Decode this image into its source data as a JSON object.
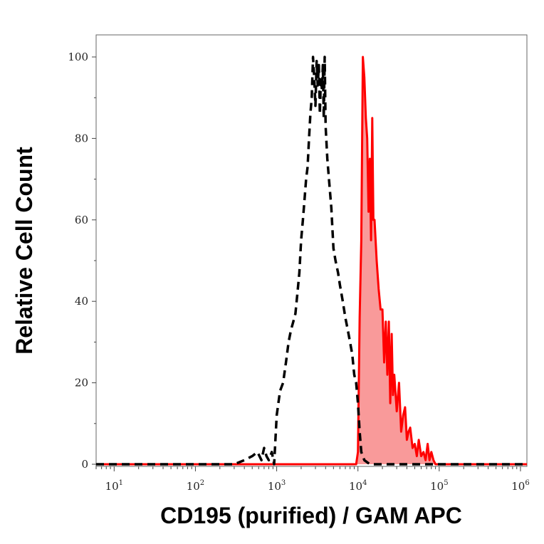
{
  "chart_data": {
    "type": "area",
    "xlabel": "CD195 (purified) / GAM APC",
    "ylabel": "Relative Cell Count",
    "x_scale": "log",
    "xlim": [
      6,
      1200000
    ],
    "ylim": [
      0,
      100
    ],
    "y_ticks": [
      "0",
      "20",
      "40",
      "60",
      "80",
      "100"
    ],
    "x_ticks": [
      {
        "value": 10,
        "base": "10",
        "exp": "1"
      },
      {
        "value": 100,
        "base": "10",
        "exp": "2"
      },
      {
        "value": 1000,
        "base": "10",
        "exp": "3"
      },
      {
        "value": 10000,
        "base": "10",
        "exp": "4"
      },
      {
        "value": 100000,
        "base": "10",
        "exp": "5"
      },
      {
        "value": 1000000,
        "base": "10",
        "exp": "6"
      }
    ],
    "grid": false,
    "colors": {
      "stained_line": "#ff0000",
      "stained_fill": "#f99a9a",
      "control_line": "#000000",
      "axis": "#333333"
    },
    "series": [
      {
        "style": "dashed-black",
        "x": [
          6,
          300,
          400,
          500,
          580,
          650,
          700,
          750,
          800,
          870,
          930,
          1000,
          1100,
          1200,
          1300,
          1400,
          1500,
          1600,
          1700,
          1800,
          1900,
          2000,
          2100,
          2200,
          2300,
          2400,
          2500,
          2600,
          2700,
          2800,
          2900,
          3000,
          3100,
          3200,
          3300,
          3400,
          3500,
          3600,
          3700,
          3800,
          3900,
          4000,
          4200,
          4400,
          4700,
          5000,
          5300,
          5700,
          6000,
          6500,
          7000,
          7500,
          8000,
          8500,
          9000,
          9500,
          10000,
          10500,
          11000,
          12000,
          14000,
          1200000
        ],
        "y": [
          0,
          0,
          1,
          2,
          3,
          1,
          4,
          2,
          1,
          3,
          0,
          12,
          18,
          20,
          25,
          30,
          33,
          35,
          37,
          42,
          47,
          55,
          60,
          65,
          70,
          73,
          80,
          86,
          90,
          100,
          95,
          88,
          99,
          93,
          98,
          86,
          95,
          92,
          98,
          85,
          100,
          83,
          75,
          70,
          63,
          53,
          50,
          47,
          44,
          40,
          36,
          33,
          30,
          27,
          22,
          20,
          15,
          8,
          3,
          1,
          0,
          0
        ]
      },
      {
        "style": "solid-red-filled",
        "x": [
          6,
          9500,
          10000,
          10500,
          11000,
          11500,
          12000,
          12500,
          13000,
          13500,
          14000,
          14500,
          15000,
          15500,
          16000,
          17000,
          18000,
          19000,
          20000,
          21000,
          22000,
          23000,
          24000,
          25000,
          26000,
          27000,
          28000,
          30000,
          32000,
          34000,
          36000,
          38000,
          40000,
          42000,
          44000,
          47000,
          50000,
          53000,
          56000,
          60000,
          64000,
          68000,
          72000,
          76000,
          80000,
          85000,
          90000,
          1200000
        ],
        "y": [
          0,
          0,
          3,
          36,
          55,
          100,
          95,
          85,
          80,
          62,
          75,
          55,
          85,
          60,
          60,
          50,
          43,
          38,
          38,
          25,
          35,
          22,
          35,
          15,
          32,
          17,
          22,
          13,
          20,
          8,
          12,
          14,
          6,
          8,
          9,
          4,
          5,
          2,
          6,
          2,
          3,
          1,
          5,
          1,
          3,
          1,
          0,
          0
        ]
      }
    ]
  }
}
